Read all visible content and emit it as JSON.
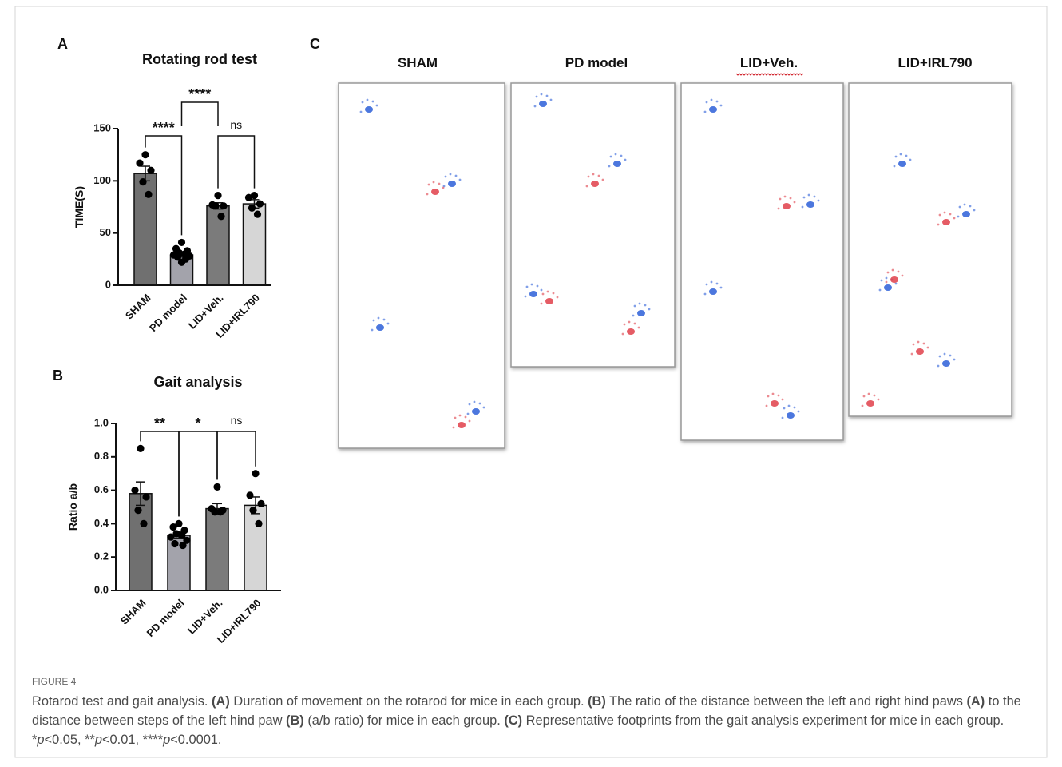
{
  "panels": [
    "A",
    "B",
    "C"
  ],
  "chart_data": [
    {
      "type": "bar",
      "title": "Rotating rod test",
      "y_label": "TIME(S)",
      "categories": [
        "SHAM",
        "PD model",
        "LID+Veh.",
        "LID+IRL790"
      ],
      "values": [
        107,
        29,
        76,
        78
      ],
      "errors": [
        7,
        2,
        3,
        4
      ],
      "points": [
        [
          125,
          117,
          110,
          99,
          87
        ],
        [
          41,
          35,
          33,
          31,
          30,
          29,
          28,
          27,
          25,
          22
        ],
        [
          86,
          77,
          76,
          76,
          66
        ],
        [
          86,
          84,
          78,
          74,
          68
        ]
      ],
      "colors": [
        "#707070",
        "#a3a3ab",
        "#7b7b7b",
        "#d6d6d6"
      ],
      "ylim": [
        0,
        150
      ],
      "yticks": [
        0,
        50,
        100,
        150
      ],
      "annotations": [
        {
          "text": "****",
          "between": [
            "SHAM",
            "PD model"
          ]
        },
        {
          "text": "****",
          "between": [
            "PD model",
            "LID+Veh."
          ]
        },
        {
          "text": "ns",
          "between": [
            "LID+Veh.",
            "LID+IRL790"
          ]
        }
      ]
    },
    {
      "type": "bar",
      "title": "Gait analysis",
      "y_label": "Ratio a/b",
      "categories": [
        "SHAM",
        "PD model",
        "LID+Veh.",
        "LID+IRL790"
      ],
      "values": [
        0.58,
        0.33,
        0.49,
        0.51
      ],
      "errors": [
        0.07,
        0.02,
        0.03,
        0.05
      ],
      "points": [
        [
          0.85,
          0.6,
          0.56,
          0.48,
          0.4
        ],
        [
          0.4,
          0.38,
          0.36,
          0.34,
          0.33,
          0.32,
          0.3,
          0.28,
          0.27
        ],
        [
          0.62,
          0.49,
          0.48,
          0.47,
          0.47
        ],
        [
          0.7,
          0.57,
          0.52,
          0.48,
          0.4
        ]
      ],
      "colors": [
        "#707070",
        "#a3a3ab",
        "#7b7b7b",
        "#d6d6d6"
      ],
      "ylim": [
        0,
        1.0
      ],
      "yticks": [
        {
          "value": 0,
          "label": "0.0"
        },
        0.2,
        0.4,
        0.6,
        0.8,
        {
          "value": 1.0,
          "label": "1.0"
        }
      ],
      "annotations": [
        {
          "text": "**",
          "between": [
            "SHAM",
            "PD model"
          ]
        },
        {
          "text": "*",
          "between": [
            "PD model",
            "LID+Veh."
          ]
        },
        {
          "text": "ns",
          "between": [
            "LID+Veh.",
            "LID+IRL790"
          ]
        }
      ]
    }
  ],
  "footprints": {
    "titles": [
      "SHAM",
      "PD model",
      "LID+Veh.",
      "LID+IRL790"
    ]
  },
  "caption": {
    "label": "FIGURE 4",
    "parts": [
      {
        "text": "Rotarod test and gait analysis. "
      },
      {
        "text": "(A)",
        "style": "bold"
      },
      {
        "text": " Duration of movement on the rotarod for mice in each group. "
      },
      {
        "text": "(B)",
        "style": "bold"
      },
      {
        "text": " The ratio of the distance between the left and right hind paws "
      },
      {
        "text": "(A)",
        "style": "bold"
      },
      {
        "text": " to the distance between steps of the left hind paw "
      },
      {
        "text": "(B)",
        "style": "bold"
      },
      {
        "text": " (a/b ratio) for mice in each group. "
      },
      {
        "text": "(C)",
        "style": "bold"
      },
      {
        "text": " Representative footprints from the gait analysis experiment for mice in each group. *"
      },
      {
        "text": "p",
        "style": "italic"
      },
      {
        "text": "<0.05, **"
      },
      {
        "text": "p",
        "style": "italic"
      },
      {
        "text": "<0.01, ****"
      },
      {
        "text": "p",
        "style": "italic"
      },
      {
        "text": "<0.0001."
      }
    ]
  }
}
